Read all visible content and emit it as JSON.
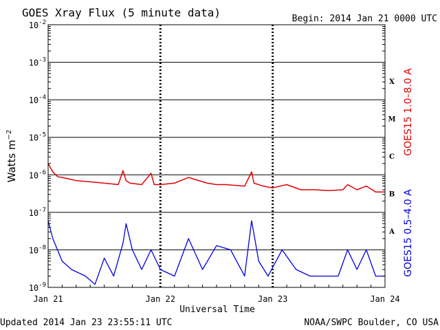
{
  "header": {
    "title": "GOES Xray Flux (5 minute data)",
    "begin": "Begin:  2014 Jan 21 0000 UTC"
  },
  "footer": {
    "updated": "Updated 2014 Jan 23 23:55:11 UTC",
    "credit": "NOAA/SWPC Boulder, CO USA"
  },
  "chart_data": {
    "type": "line",
    "title": "GOES Xray Flux (5 minute data)",
    "xlabel": "Universal Time",
    "ylabel": "Watts m⁻²",
    "y_scale": "log",
    "ylim": [
      1e-09,
      0.01
    ],
    "xlim": [
      "2014-01-21",
      "2014-01-24"
    ],
    "x_tick_labels": [
      "Jan 21",
      "Jan 22",
      "Jan 23",
      "Jan 24"
    ],
    "y_ticks": [
      {
        "base": "10",
        "exp": "-9"
      },
      {
        "base": "10",
        "exp": "-8"
      },
      {
        "base": "10",
        "exp": "-7"
      },
      {
        "base": "10",
        "exp": "-6"
      },
      {
        "base": "10",
        "exp": "-5"
      },
      {
        "base": "10",
        "exp": "-4"
      },
      {
        "base": "10",
        "exp": "-3"
      },
      {
        "base": "10",
        "exp": "-2"
      }
    ],
    "flare_classes": [
      "A",
      "B",
      "C",
      "M",
      "X"
    ],
    "grid": true,
    "series": [
      {
        "name": "GOES15 1.0–8.0 A",
        "color": "#e00000",
        "x": [
          "2014-01-21 00:00",
          "2014-01-21 01:00",
          "2014-01-21 02:00",
          "2014-01-21 04:00",
          "2014-01-21 06:00",
          "2014-01-21 09:00",
          "2014-01-21 12:00",
          "2014-01-21 15:00",
          "2014-01-21 16:00",
          "2014-01-21 16:40",
          "2014-01-21 17:30",
          "2014-01-21 20:00",
          "2014-01-21 22:00",
          "2014-01-21 22:40",
          "2014-01-22 00:00",
          "2014-01-22 03:00",
          "2014-01-22 06:00",
          "2014-01-22 10:00",
          "2014-01-22 12:00",
          "2014-01-22 14:00",
          "2014-01-22 18:00",
          "2014-01-22 19:30",
          "2014-01-22 20:00",
          "2014-01-22 22:00",
          "2014-01-23 00:00",
          "2014-01-23 03:00",
          "2014-01-23 06:00",
          "2014-01-23 09:00",
          "2014-01-23 12:00",
          "2014-01-23 15:00",
          "2014-01-23 16:00",
          "2014-01-23 18:00",
          "2014-01-23 20:00",
          "2014-01-23 22:00",
          "2014-01-24 00:00"
        ],
        "y": [
          2e-06,
          1.2e-06,
          9e-07,
          8e-07,
          7e-07,
          6.5e-07,
          6e-07,
          5.5e-07,
          1.3e-06,
          7e-07,
          6e-07,
          5.5e-07,
          1.1e-06,
          5.5e-07,
          5.5e-07,
          6e-07,
          8.5e-07,
          6e-07,
          5.5e-07,
          5.5e-07,
          5e-07,
          1.2e-06,
          6e-07,
          5e-07,
          4.5e-07,
          5.5e-07,
          4e-07,
          4e-07,
          3.8e-07,
          4e-07,
          5.5e-07,
          4e-07,
          5e-07,
          3.5e-07,
          3.5e-07
        ]
      },
      {
        "name": "GOES15 0.5–4.0 A",
        "color": "#0000e0",
        "x": [
          "2014-01-21 00:00",
          "2014-01-21 01:00",
          "2014-01-21 02:00",
          "2014-01-21 03:00",
          "2014-01-21 05:00",
          "2014-01-21 08:00",
          "2014-01-21 10:00",
          "2014-01-21 12:00",
          "2014-01-21 14:00",
          "2014-01-21 16:00",
          "2014-01-21 16:40",
          "2014-01-21 18:00",
          "2014-01-21 20:00",
          "2014-01-21 22:00",
          "2014-01-22 00:00",
          "2014-01-22 03:00",
          "2014-01-22 06:00",
          "2014-01-22 09:00",
          "2014-01-22 12:00",
          "2014-01-22 15:00",
          "2014-01-22 18:00",
          "2014-01-22 19:30",
          "2014-01-22 21:00",
          "2014-01-22 23:00",
          "2014-01-23 02:00",
          "2014-01-23 05:00",
          "2014-01-23 08:00",
          "2014-01-23 11:00",
          "2014-01-23 14:00",
          "2014-01-23 16:00",
          "2014-01-23 18:00",
          "2014-01-23 20:00",
          "2014-01-23 22:00",
          "2014-01-24 00:00"
        ],
        "y": [
          6e-08,
          2e-08,
          1e-08,
          5e-09,
          3e-09,
          2e-09,
          1.2e-09,
          6e-09,
          2e-09,
          1.5e-08,
          5e-08,
          1e-08,
          3e-09,
          1e-08,
          3e-09,
          2e-09,
          2e-08,
          3e-09,
          1.3e-08,
          1e-08,
          2e-09,
          6e-08,
          5e-09,
          2e-09,
          1e-08,
          3e-09,
          2e-09,
          2e-09,
          2e-09,
          1e-08,
          3e-09,
          1e-08,
          2e-09,
          2e-09
        ]
      }
    ]
  }
}
